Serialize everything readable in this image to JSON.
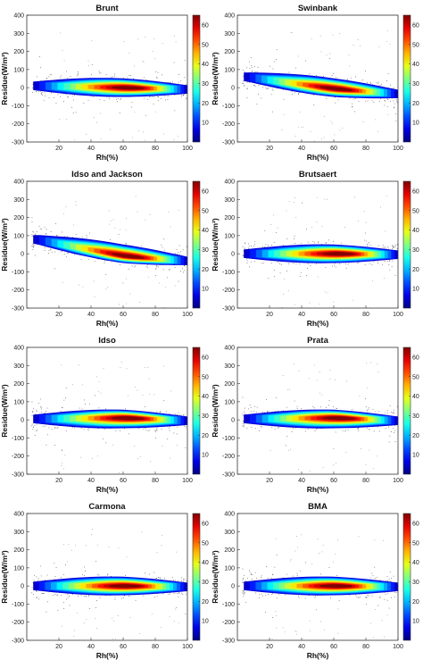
{
  "chart_data": [
    {
      "type": "heatmap",
      "title": "Brunt",
      "xlabel": "Rh(%)",
      "ylabel": "Residue(W/m²)",
      "xlim": [
        0,
        100
      ],
      "ylim": [
        -300,
        400
      ],
      "xticks": [
        20,
        40,
        60,
        80,
        100
      ],
      "yticks": [
        -300,
        -200,
        -100,
        0,
        100,
        200,
        300,
        400
      ],
      "colorbar": {
        "range": [
          0,
          65
        ],
        "ticks": [
          10,
          20,
          30,
          40,
          50,
          60
        ]
      },
      "trend": {
        "x": [
          5,
          60,
          100
        ],
        "y": [
          10,
          0,
          -10
        ]
      },
      "spread": 52,
      "peak": {
        "x": 62,
        "y": 0,
        "count": 64
      }
    },
    {
      "type": "heatmap",
      "title": "Swinbank",
      "xlabel": "Rh(%)",
      "ylabel": "Residue(W/m²)",
      "xlim": [
        0,
        100
      ],
      "ylim": [
        -300,
        400
      ],
      "xticks": [
        20,
        40,
        60,
        80,
        100
      ],
      "yticks": [
        -300,
        -200,
        -100,
        0,
        100,
        200,
        300,
        400
      ],
      "colorbar": {
        "range": [
          0,
          65
        ],
        "ticks": [
          10,
          20,
          30,
          40,
          50,
          60
        ]
      },
      "trend": {
        "x": [
          5,
          60,
          100
        ],
        "y": [
          60,
          0,
          -35
        ]
      },
      "spread": 52,
      "peak": {
        "x": 60,
        "y": -5,
        "count": 64
      }
    },
    {
      "type": "heatmap",
      "title": "Idso and Jackson",
      "xlabel": "Rh(%)",
      "ylabel": "Residue(W/m²)",
      "xlim": [
        0,
        100
      ],
      "ylim": [
        -300,
        400
      ],
      "xticks": [
        20,
        40,
        60,
        80,
        100
      ],
      "yticks": [
        -300,
        -200,
        -100,
        0,
        100,
        200,
        300,
        400
      ],
      "colorbar": {
        "range": [
          0,
          65
        ],
        "ticks": [
          10,
          20,
          30,
          40,
          50,
          60
        ]
      },
      "trend": {
        "x": [
          5,
          60,
          100
        ],
        "y": [
          80,
          0,
          -40
        ]
      },
      "spread": 52,
      "peak": {
        "x": 62,
        "y": -10,
        "count": 64
      }
    },
    {
      "type": "heatmap",
      "title": "Brutsaert",
      "xlabel": "Rh(%)",
      "ylabel": "Residue(W/m²)",
      "xlim": [
        0,
        100
      ],
      "ylim": [
        -300,
        400
      ],
      "xticks": [
        20,
        40,
        60,
        80,
        100
      ],
      "yticks": [
        -300,
        -200,
        -100,
        0,
        100,
        200,
        300,
        400
      ],
      "colorbar": {
        "range": [
          0,
          65
        ],
        "ticks": [
          10,
          20,
          30,
          40,
          50,
          60
        ]
      },
      "trend": {
        "x": [
          5,
          60,
          100
        ],
        "y": [
          0,
          0,
          -5
        ]
      },
      "spread": 52,
      "peak": {
        "x": 62,
        "y": 0,
        "count": 64
      }
    },
    {
      "type": "heatmap",
      "title": "Idso",
      "xlabel": "Rh(%)",
      "ylabel": "Residue(W/m²)",
      "xlim": [
        0,
        100
      ],
      "ylim": [
        -300,
        400
      ],
      "xticks": [
        20,
        40,
        60,
        80,
        100
      ],
      "yticks": [
        -300,
        -200,
        -100,
        0,
        100,
        200,
        300,
        400
      ],
      "colorbar": {
        "range": [
          0,
          65
        ],
        "ticks": [
          10,
          20,
          30,
          40,
          50,
          60
        ]
      },
      "trend": {
        "x": [
          5,
          60,
          100
        ],
        "y": [
          5,
          5,
          -5
        ]
      },
      "spread": 52,
      "peak": {
        "x": 62,
        "y": 5,
        "count": 64
      }
    },
    {
      "type": "heatmap",
      "title": "Prata",
      "xlabel": "Rh(%)",
      "ylabel": "Residue(W/m²)",
      "xlim": [
        0,
        100
      ],
      "ylim": [
        -300,
        400
      ],
      "xticks": [
        20,
        40,
        60,
        80,
        100
      ],
      "yticks": [
        -300,
        -200,
        -100,
        0,
        100,
        200,
        300,
        400
      ],
      "colorbar": {
        "range": [
          0,
          65
        ],
        "ticks": [
          10,
          20,
          30,
          40,
          50,
          60
        ]
      },
      "trend": {
        "x": [
          5,
          60,
          100
        ],
        "y": [
          5,
          5,
          -5
        ]
      },
      "spread": 52,
      "peak": {
        "x": 62,
        "y": 5,
        "count": 64
      }
    },
    {
      "type": "heatmap",
      "title": "Carmona",
      "xlabel": "Rh(%)",
      "ylabel": "Residue(W/m²)",
      "xlim": [
        0,
        100
      ],
      "ylim": [
        -300,
        400
      ],
      "xticks": [
        20,
        40,
        60,
        80,
        100
      ],
      "yticks": [
        -300,
        -200,
        -100,
        0,
        100,
        200,
        300,
        400
      ],
      "colorbar": {
        "range": [
          0,
          65
        ],
        "ticks": [
          10,
          20,
          30,
          40,
          50,
          60
        ]
      },
      "trend": {
        "x": [
          5,
          60,
          100
        ],
        "y": [
          0,
          0,
          -5
        ]
      },
      "spread": 52,
      "peak": {
        "x": 60,
        "y": 0,
        "count": 64
      }
    },
    {
      "type": "heatmap",
      "title": "BMA",
      "xlabel": "Rh(%)",
      "ylabel": "Residue(W/m²)",
      "xlim": [
        0,
        100
      ],
      "ylim": [
        -300,
        400
      ],
      "xticks": [
        20,
        40,
        60,
        80,
        100
      ],
      "yticks": [
        -300,
        -200,
        -100,
        0,
        100,
        200,
        300,
        400
      ],
      "colorbar": {
        "range": [
          0,
          65
        ],
        "ticks": [
          10,
          20,
          30,
          40,
          50,
          60
        ]
      },
      "trend": {
        "x": [
          5,
          60,
          100
        ],
        "y": [
          0,
          0,
          -5
        ]
      },
      "spread": 52,
      "peak": {
        "x": 60,
        "y": 0,
        "count": 64
      }
    }
  ]
}
